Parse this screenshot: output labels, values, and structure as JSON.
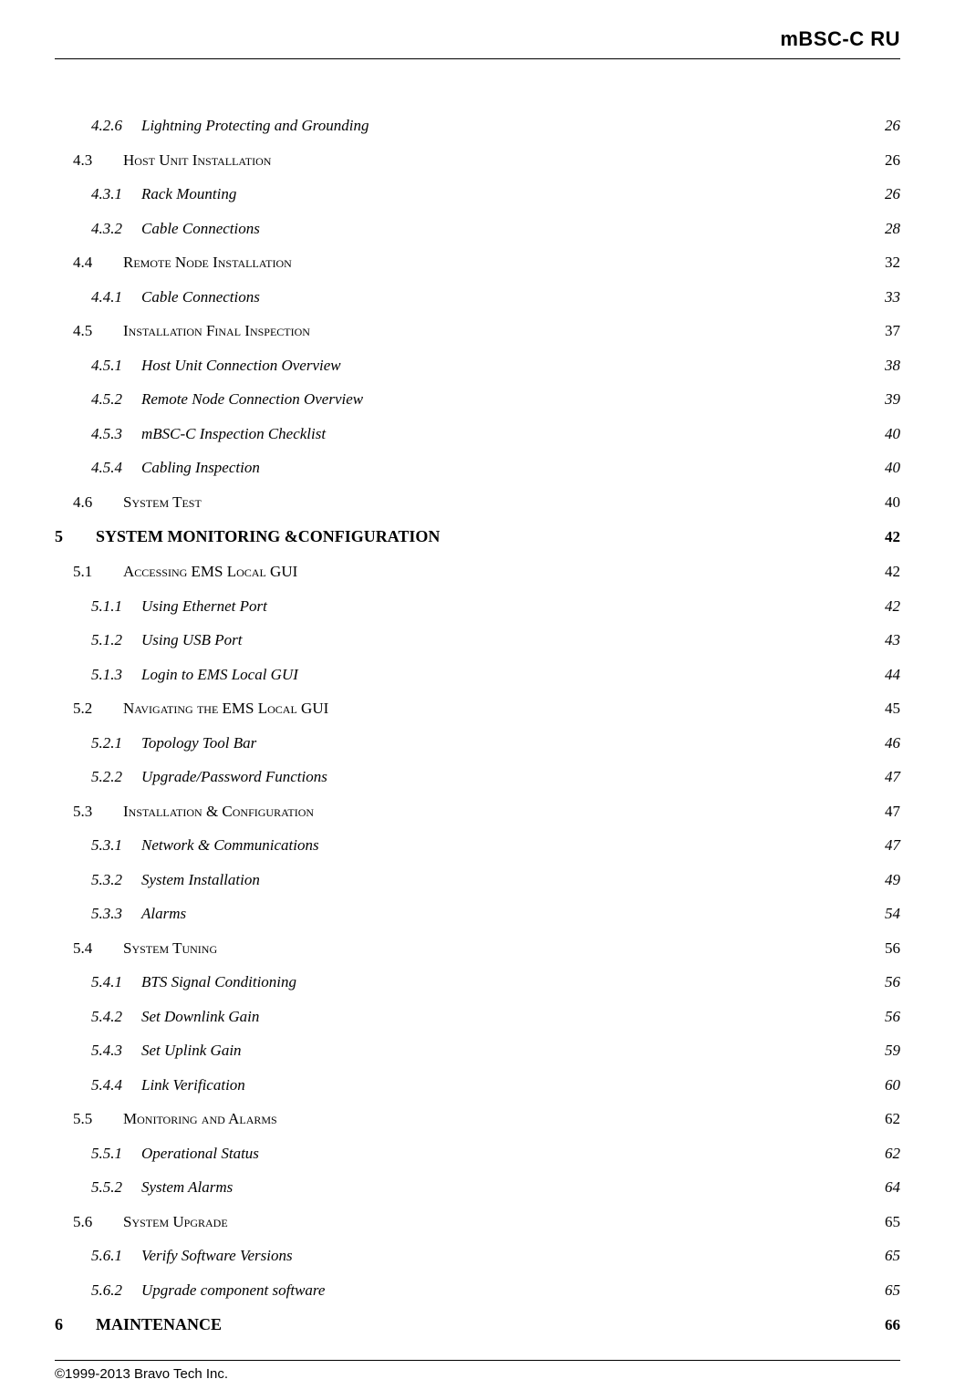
{
  "header": {
    "title": "mBSC-C   RU"
  },
  "toc": {
    "entries": [
      {
        "level": 3,
        "num": "4.2.6",
        "title": "Lightning Protecting and Grounding",
        "page": "26"
      },
      {
        "level": 2,
        "num": "4.3",
        "title": "Host Unit Installation",
        "smallcaps": true,
        "page": "26"
      },
      {
        "level": 3,
        "num": "4.3.1",
        "title": "Rack Mounting",
        "page": "26"
      },
      {
        "level": 3,
        "num": "4.3.2",
        "title": "Cable Connections",
        "page": "28"
      },
      {
        "level": 2,
        "num": "4.4",
        "title": "Remote Node Installation",
        "smallcaps": true,
        "page": "32"
      },
      {
        "level": 3,
        "num": "4.4.1",
        "title": "Cable Connections",
        "page": "33"
      },
      {
        "level": 2,
        "num": "4.5",
        "title": "Installation Final Inspection",
        "smallcaps": true,
        "page": "37"
      },
      {
        "level": 3,
        "num": "4.5.1",
        "title": "Host Unit Connection Overview",
        "page": "38"
      },
      {
        "level": 3,
        "num": "4.5.2",
        "title": "Remote Node Connection Overview",
        "page": "39"
      },
      {
        "level": 3,
        "num": "4.5.3",
        "title": "mBSC-C Inspection Checklist",
        "page": "40"
      },
      {
        "level": 3,
        "num": "4.5.4",
        "title": "Cabling Inspection",
        "page": "40"
      },
      {
        "level": 2,
        "num": "4.6",
        "title": "System Test",
        "smallcaps": true,
        "page": "40"
      },
      {
        "level": 1,
        "num": "5",
        "title": "SYSTEM MONITORING &CONFIGURATION",
        "page": "42"
      },
      {
        "level": 2,
        "num": "5.1",
        "title": "Accessing EMS Local GUI",
        "smallcaps": true,
        "page": "42"
      },
      {
        "level": 3,
        "num": "5.1.1",
        "title": "Using Ethernet Port",
        "page": "42"
      },
      {
        "level": 3,
        "num": "5.1.2",
        "title": "Using USB Port",
        "page": "43"
      },
      {
        "level": 3,
        "num": "5.1.3",
        "title": "Login to EMS Local GUI",
        "page": "44"
      },
      {
        "level": 2,
        "num": "5.2",
        "title": "Navigating the EMS Local GUI",
        "smallcaps": true,
        "page": "45"
      },
      {
        "level": 3,
        "num": "5.2.1",
        "title": "Topology Tool Bar",
        "page": "46"
      },
      {
        "level": 3,
        "num": "5.2.2",
        "title": "Upgrade/Password Functions",
        "page": "47"
      },
      {
        "level": 2,
        "num": "5.3",
        "title": "Installation & Configuration",
        "smallcaps": true,
        "page": "47"
      },
      {
        "level": 3,
        "num": "5.3.1",
        "title": "Network & Communications",
        "page": "47"
      },
      {
        "level": 3,
        "num": "5.3.2",
        "title": "System Installation",
        "page": "49"
      },
      {
        "level": 3,
        "num": "5.3.3",
        "title": "Alarms",
        "page": "54"
      },
      {
        "level": 2,
        "num": "5.4",
        "title": "System Tuning",
        "smallcaps": true,
        "page": "56"
      },
      {
        "level": 3,
        "num": "5.4.1",
        "title": "BTS Signal Conditioning",
        "page": "56"
      },
      {
        "level": 3,
        "num": "5.4.2",
        "title": "Set Downlink Gain",
        "page": "56"
      },
      {
        "level": 3,
        "num": "5.4.3",
        "title": "Set Uplink Gain",
        "page": "59"
      },
      {
        "level": 3,
        "num": "5.4.4",
        "title": "Link Verification",
        "page": "60"
      },
      {
        "level": 2,
        "num": "5.5",
        "title": "Monitoring and Alarms",
        "smallcaps": true,
        "page": "62"
      },
      {
        "level": 3,
        "num": "5.5.1",
        "title": "Operational Status",
        "page": "62"
      },
      {
        "level": 3,
        "num": "5.5.2",
        "title": "System Alarms",
        "page": "64"
      },
      {
        "level": 2,
        "num": "5.6",
        "title": "System Upgrade",
        "smallcaps": true,
        "page": "65"
      },
      {
        "level": 3,
        "num": "5.6.1",
        "title": "Verify Software Versions",
        "page": "65"
      },
      {
        "level": 3,
        "num": "5.6.2",
        "title": "Upgrade component software",
        "page": "65"
      },
      {
        "level": 1,
        "num": "6",
        "title": "MAINTENANCE",
        "page": "66"
      }
    ]
  },
  "footer": {
    "copyright": "©1999-2013 Bravo Tech Inc."
  }
}
